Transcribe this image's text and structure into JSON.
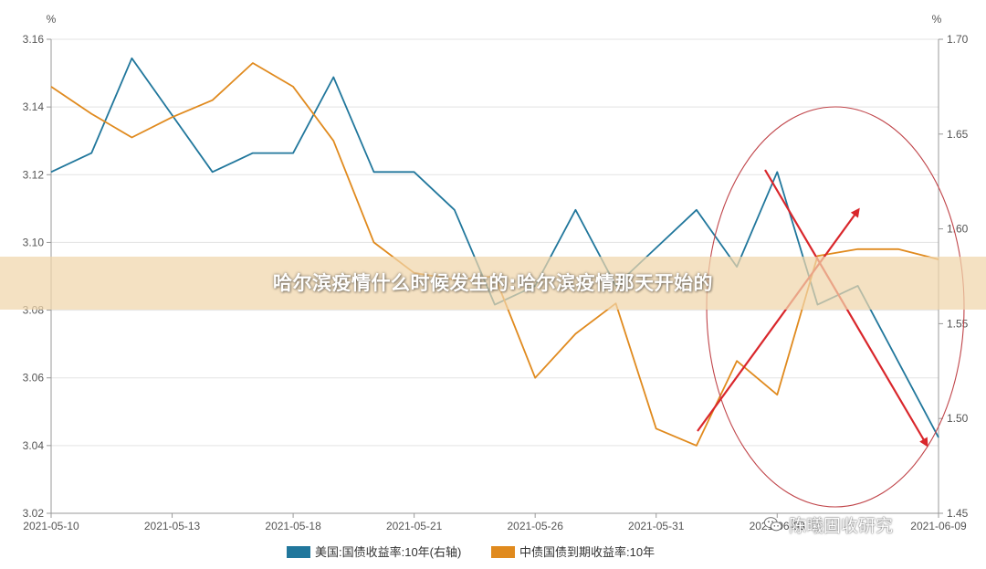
{
  "banner": {
    "title": "哈尔滨疫情什么时候发生的:哈尔滨疫情那天开始的"
  },
  "watermark": {
    "text": "陈曦固收研究",
    "icon": "wechat-icon"
  },
  "chart_data": {
    "type": "line",
    "left_axis": {
      "unit": "%",
      "ylim": [
        3.02,
        3.16
      ],
      "ticks": [
        "3.02",
        "3.04",
        "3.06",
        "3.08",
        "3.10",
        "3.12",
        "3.14",
        "3.16"
      ]
    },
    "right_axis": {
      "unit": "%",
      "ylim": [
        1.45,
        1.7
      ],
      "ticks": [
        "1.45",
        "1.50",
        "1.55",
        "1.60",
        "1.65",
        "1.70"
      ]
    },
    "x_ticks": [
      "2021-05-10",
      "2021-05-13",
      "2021-05-18",
      "2021-05-21",
      "2021-05-26",
      "2021-05-31",
      "2021-06-03",
      "2021-06-09"
    ],
    "x_tick_indices": [
      0,
      3,
      6,
      9,
      12,
      15,
      18,
      22
    ],
    "grid": true,
    "legend_position": "bottom-center",
    "series": [
      {
        "name": "美国:国债收益率:10年(右轴)",
        "axis": "right",
        "color": "#21779c",
        "values": [
          1.63,
          1.64,
          1.69,
          1.66,
          1.63,
          1.64,
          1.64,
          1.68,
          1.63,
          1.63,
          1.61,
          1.56,
          1.57,
          1.61,
          1.57,
          1.59,
          1.61,
          1.58,
          1.63,
          1.56,
          1.57,
          1.53,
          1.49
        ]
      },
      {
        "name": "中债国债到期收益率:10年",
        "axis": "left",
        "color": "#e08a1e",
        "values": [
          3.146,
          3.138,
          3.131,
          3.137,
          3.142,
          3.153,
          3.146,
          3.13,
          3.1,
          3.091,
          3.089,
          3.09,
          3.06,
          3.073,
          3.082,
          3.045,
          3.04,
          3.065,
          3.055,
          3.096,
          3.098,
          3.098,
          3.095
        ]
      }
    ],
    "annotations": [
      {
        "type": "ellipse",
        "color": "#c0454a"
      },
      {
        "type": "arrow",
        "direction": "up",
        "color": "#d9262b"
      },
      {
        "type": "arrow",
        "direction": "down",
        "color": "#d9262b"
      }
    ]
  }
}
